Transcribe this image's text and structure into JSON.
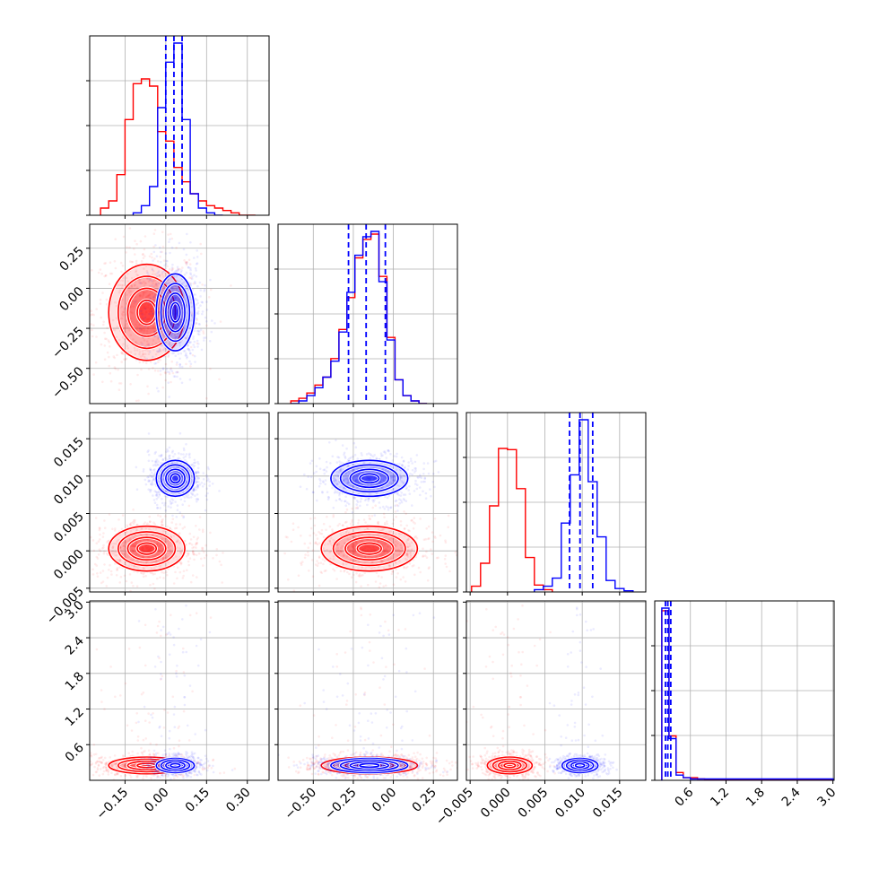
{
  "chart_data": {
    "type": "corner",
    "n_params": 4,
    "title": "",
    "colors": {
      "series_a": "#ff0000",
      "series_b": "#0000ff"
    },
    "ranges": [
      [
        -0.28,
        0.38
      ],
      [
        -0.72,
        0.4
      ],
      [
        -0.0055,
        0.0185
      ],
      [
        0.0,
        3.02
      ]
    ],
    "tick_labels": [
      [
        "−0.15",
        "0.00",
        "0.15",
        "0.30"
      ],
      [
        "−0.50",
        "−0.25",
        "0.00",
        "0.25"
      ],
      [
        "−0.005",
        "0.000",
        "0.005",
        "0.010",
        "0.015"
      ],
      [
        "0.6",
        "1.2",
        "1.8",
        "2.4",
        "3.0"
      ]
    ],
    "tick_values": [
      [
        -0.15,
        0.0,
        0.15,
        0.3
      ],
      [
        -0.5,
        -0.25,
        0.0,
        0.25
      ],
      [
        -0.005,
        0.0,
        0.005,
        0.01,
        0.015
      ],
      [
        0.6,
        1.2,
        1.8,
        2.4,
        3.0
      ]
    ],
    "grid": true,
    "series": [
      {
        "color": "#ff0000",
        "means": [
          -0.07,
          -0.15,
          0.0003,
          0.25
        ],
        "sds": [
          0.07,
          0.15,
          0.0015,
          0.07
        ],
        "hist_edges": [
          [
            -0.24,
            -0.21,
            -0.18,
            -0.15,
            -0.12,
            -0.09,
            -0.06,
            -0.03,
            0.0,
            0.03,
            0.06,
            0.09,
            0.12,
            0.15,
            0.18,
            0.21,
            0.24,
            0.27,
            0.3,
            0.33
          ],
          [
            -0.64,
            -0.59,
            -0.54,
            -0.49,
            -0.44,
            -0.39,
            -0.34,
            -0.29,
            -0.24,
            -0.19,
            -0.14,
            -0.09,
            -0.04,
            0.01,
            0.06,
            0.11,
            0.16,
            0.21
          ],
          [
            -0.0048,
            -0.0036,
            -0.0024,
            -0.0012,
            0.0,
            0.0012,
            0.0024,
            0.0036,
            0.0048,
            0.006
          ],
          [
            0.12,
            0.24,
            0.36,
            0.48,
            0.6,
            0.72,
            0.84,
            0.96,
            3.0
          ]
        ],
        "hist_counts": [
          [
            3,
            6,
            17,
            40,
            55,
            57,
            54,
            35,
            31,
            20,
            14,
            9,
            6,
            4,
            3,
            2,
            1,
            0,
            0
          ],
          [
            1,
            2,
            4,
            7,
            10,
            17,
            28,
            40,
            55,
            62,
            64,
            48,
            25,
            9,
            3,
            1,
            0
          ],
          [
            5,
            25,
            75,
            125,
            124,
            90,
            30,
            6,
            2
          ],
          [
            0.65,
            0.17,
            0.03,
            0.01,
            0.01,
            0.005,
            0.003,
            0.002
          ]
        ]
      },
      {
        "color": "#0000ff",
        "means": [
          0.035,
          -0.15,
          0.0097,
          0.25
        ],
        "sds": [
          0.035,
          0.12,
          0.0012,
          0.06
        ],
        "quantiles": [
          [
            0.0,
            0.03,
            0.06
          ],
          [
            -0.28,
            -0.17,
            -0.05
          ],
          [
            0.0083,
            0.0097,
            0.0114
          ],
          [
            0.18,
            0.22,
            0.27
          ]
        ],
        "hist_edges": [
          [
            -0.12,
            -0.09,
            -0.06,
            -0.03,
            0.0,
            0.03,
            0.06,
            0.09,
            0.12,
            0.15,
            0.18,
            0.21
          ],
          [
            -0.64,
            -0.59,
            -0.54,
            -0.49,
            -0.44,
            -0.39,
            -0.34,
            -0.29,
            -0.24,
            -0.19,
            -0.14,
            -0.09,
            -0.04,
            0.01,
            0.06,
            0.11,
            0.16,
            0.21
          ],
          [
            0.0036,
            0.0048,
            0.006,
            0.0072,
            0.0084,
            0.0096,
            0.0108,
            0.012,
            0.0132,
            0.0144,
            0.0156,
            0.0168
          ],
          [
            0.12,
            0.24,
            0.36,
            0.48,
            0.6,
            3.0
          ]
        ],
        "hist_counts": [
          [
            1,
            4,
            12,
            45,
            64,
            72,
            40,
            9,
            3,
            1,
            0
          ],
          [
            0,
            1,
            3,
            6,
            10,
            16,
            27,
            42,
            56,
            63,
            65,
            46,
            24,
            9,
            3,
            1,
            0
          ],
          [
            2,
            5,
            12,
            60,
            102,
            150,
            96,
            48,
            10,
            3,
            1
          ],
          [
            0.66,
            0.16,
            0.02,
            0.01,
            0.005
          ]
        ]
      }
    ]
  }
}
